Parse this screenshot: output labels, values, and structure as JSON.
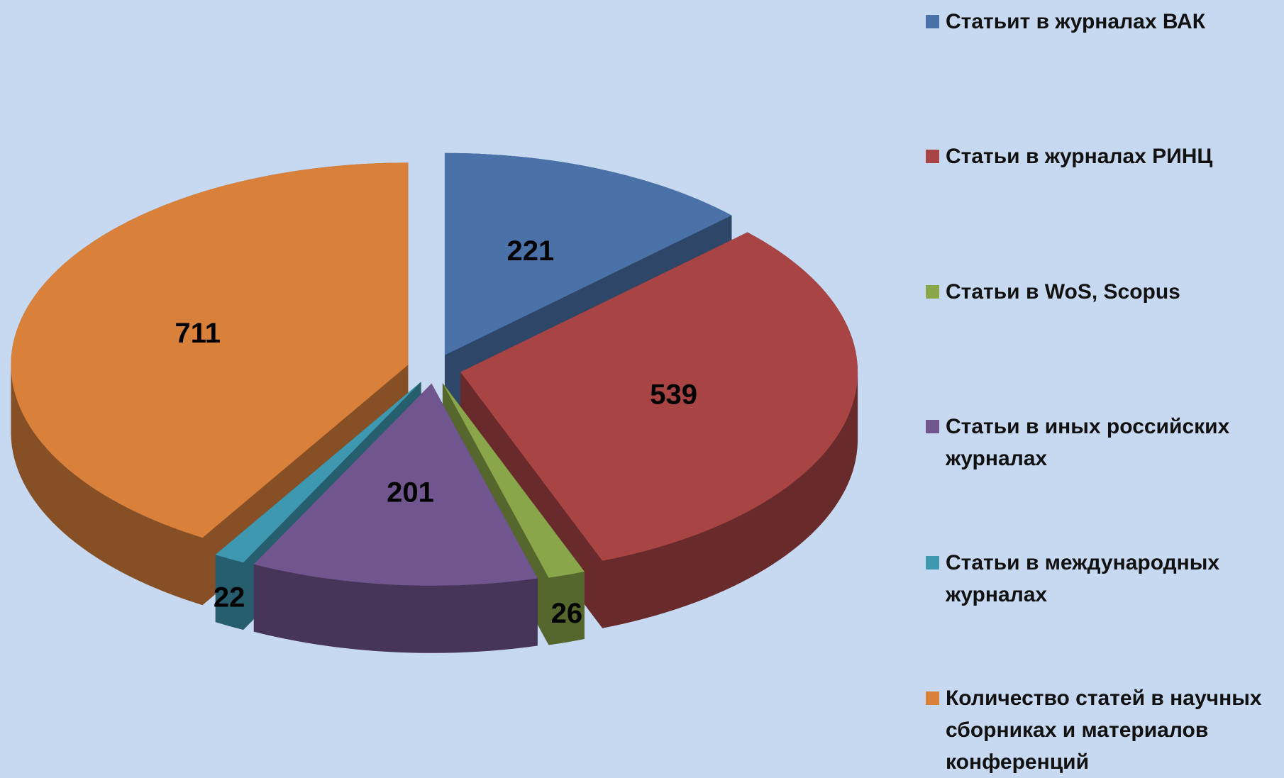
{
  "chart_data": {
    "type": "pie",
    "categories": [
      "Статьит в журналах ВАК",
      "Статьи в журналах РИНЦ",
      "Статьи в WoS, Scopus",
      "Статьи в иных российских журналах",
      "Статьи в международных журналах",
      "Количество статей в научных сборниках и материалов конференций"
    ],
    "values": [
      221,
      539,
      26,
      201,
      22,
      711
    ],
    "colors": [
      "#4a72a8",
      "#a84444",
      "#8aa64a",
      "#71558e",
      "#3e98b0",
      "#d9803b"
    ],
    "legend": "right"
  }
}
